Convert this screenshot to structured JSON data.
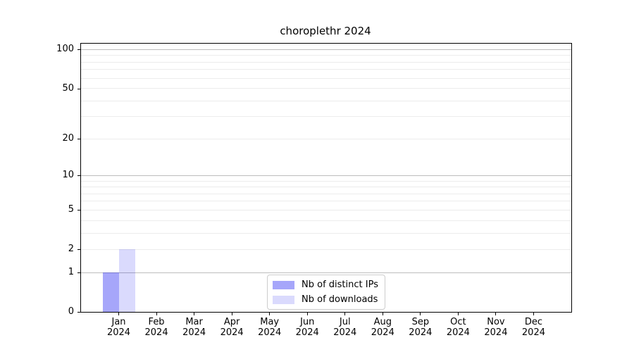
{
  "chart_data": {
    "type": "bar",
    "title": "choroplethr 2024",
    "categories": [
      "Jan",
      "Feb",
      "Mar",
      "Apr",
      "May",
      "Jun",
      "Jul",
      "Aug",
      "Sep",
      "Oct",
      "Nov",
      "Dec"
    ],
    "year_label": "2024",
    "series": [
      {
        "name": "Nb of distinct IPs",
        "color": "rgba(0,0,240,0.35)",
        "values": [
          1,
          0,
          0,
          0,
          0,
          0,
          0,
          0,
          0,
          0,
          0,
          0
        ]
      },
      {
        "name": "Nb of downloads",
        "color": "rgba(0,0,240,0.145)",
        "values": [
          2,
          0,
          0,
          0,
          0,
          0,
          0,
          0,
          0,
          0,
          0,
          0
        ]
      }
    ],
    "yscale": "log1p",
    "ylim": [
      0,
      111
    ],
    "yticks": [
      0,
      1,
      2,
      5,
      10,
      20,
      50,
      100
    ],
    "grid": {
      "major": [
        1,
        10,
        100
      ],
      "minor": [
        2,
        3,
        4,
        5,
        6,
        7,
        8,
        9,
        20,
        30,
        40,
        50,
        60,
        70,
        80,
        90
      ],
      "major_color": "#bdbdbd",
      "minor_color": "#ececec"
    },
    "legend_position": "lower center",
    "axis_color": "#000000"
  }
}
